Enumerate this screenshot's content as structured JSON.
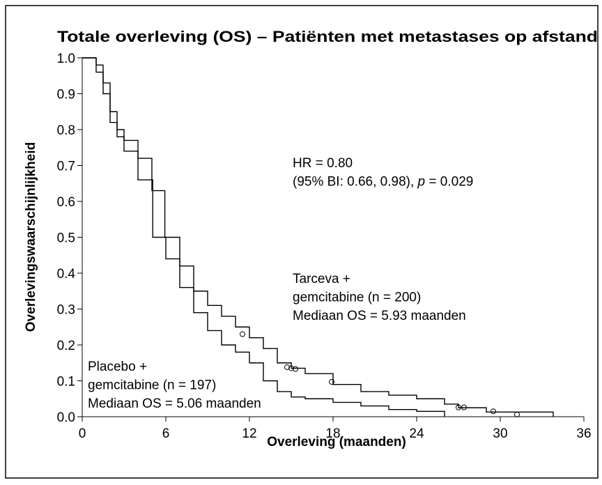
{
  "chart_data": {
    "type": "step",
    "title": "Totale overleving (OS) – Patiënten met metastases op afstand",
    "x_label": "Overleving (maanden)",
    "y_label": "Overlevingswaarschijnlijkheid",
    "xlim": [
      0,
      36
    ],
    "xticks": [
      0,
      6,
      12,
      18,
      24,
      30,
      36
    ],
    "ylim": [
      0,
      1
    ],
    "yticks": [
      {
        "value": 0,
        "label": "0.0"
      },
      0.1,
      0.2,
      0.3,
      0.4,
      0.5,
      0.6,
      0.7,
      0.8,
      0.9,
      {
        "value": 1,
        "label": "1.0"
      }
    ],
    "series": [
      {
        "name": "Tarceva",
        "color": "#000000",
        "x": [
          0,
          1,
          1.5,
          2,
          2.5,
          3,
          4,
          5,
          5.93,
          7,
          8,
          9,
          10,
          11,
          12,
          13,
          14,
          15,
          16,
          18,
          20,
          22,
          24,
          26,
          27,
          29,
          33.8
        ],
        "values": [
          1,
          0.98,
          0.93,
          0.85,
          0.8,
          0.77,
          0.72,
          0.63,
          0.5,
          0.42,
          0.35,
          0.31,
          0.28,
          0.25,
          0.22,
          0.19,
          0.15,
          0.135,
          0.12,
          0.09,
          0.07,
          0.06,
          0.05,
          0.035,
          0.025,
          0.013,
          0
        ],
        "censored_x": [
          11.5,
          14.7,
          15.0,
          15.3,
          17.9,
          27.0,
          27.4,
          29.5,
          31.2
        ],
        "censored_values": [
          0.23,
          0.138,
          0.135,
          0.133,
          0.097,
          0.026,
          0.026,
          0.015,
          0.006
        ]
      },
      {
        "name": "Placebo",
        "color": "#000000",
        "x": [
          0,
          1,
          1.5,
          2,
          2.5,
          3,
          4,
          5.06,
          6,
          7,
          8,
          9,
          10,
          11,
          12,
          13,
          14,
          15,
          16,
          18,
          20,
          22,
          24,
          26
        ],
        "values": [
          1,
          0.96,
          0.9,
          0.82,
          0.78,
          0.74,
          0.66,
          0.5,
          0.44,
          0.36,
          0.29,
          0.24,
          0.2,
          0.18,
          0.15,
          0.1,
          0.07,
          0.055,
          0.05,
          0.04,
          0.03,
          0.02,
          0.015,
          0
        ]
      }
    ],
    "annotations": [
      {
        "lines": [
          [
            "HR = 0.80"
          ],
          [
            "(95% BI: 0.66, 0.98), ",
            "p",
            " = 0.029"
          ]
        ]
      },
      {
        "lines": [
          [
            "Tarceva +"
          ],
          [
            "gemcitabine (n = 200)"
          ],
          [
            "Mediaan OS = 5.93 maanden"
          ]
        ]
      },
      {
        "lines": [
          [
            "Placebo +"
          ],
          [
            "gemcitabine (n = 197)"
          ],
          [
            "Mediaan OS = 5.06 maanden"
          ]
        ]
      }
    ]
  }
}
